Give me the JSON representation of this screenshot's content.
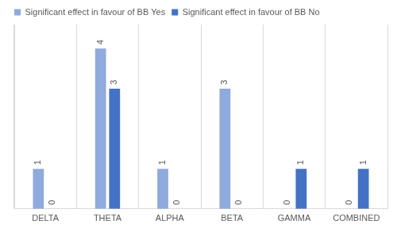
{
  "chart_data": {
    "type": "bar",
    "categories": [
      "DELTA",
      "THETA",
      "ALPHA",
      "BETA",
      "GAMMA",
      "COMBINED"
    ],
    "series": [
      {
        "name": "Significant effect in favour of BB Yes",
        "color": "#8faadc",
        "values": [
          1,
          4,
          1,
          3,
          0,
          0
        ]
      },
      {
        "name": "Significant effect in favour of BB No",
        "color": "#4472c4",
        "values": [
          0,
          3,
          0,
          0,
          1,
          1
        ]
      }
    ],
    "ylim": [
      0,
      4.6
    ],
    "grid": "x",
    "legend": "upper left",
    "data_labels": true,
    "tick_labels": "x"
  }
}
